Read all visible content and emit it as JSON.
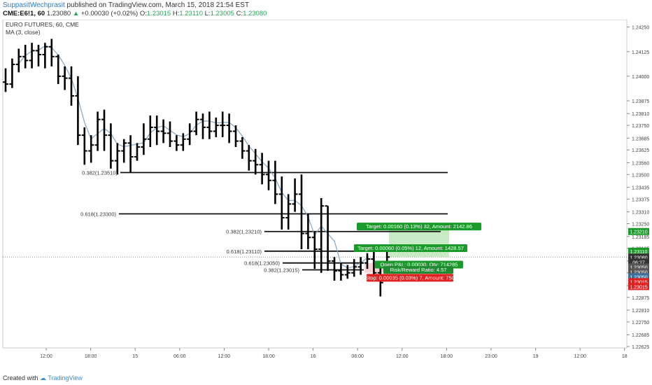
{
  "header": {
    "author": "SuppasitWechprasit",
    "published_text": " published on TradingView.com, March 15, 2018 21:54 EST"
  },
  "ticker": {
    "symbol": "CME:E6!1, 60",
    "last": "1.23080",
    "arrow": "▲",
    "change": "+0.00030 (+0.02%)",
    "o_label": "O:",
    "o_value": "1.23015",
    "h_label": "H:",
    "h_value": "1.23110",
    "l_label": "L:",
    "l_value": "1.23005",
    "c_label": "C:",
    "c_value": "1.23080"
  },
  "footer": {
    "created_with": "Created with",
    "brand": "TradingView"
  },
  "chart_data": {
    "type": "ohlc",
    "title": "EURO FUTURES, 60, CME",
    "indicator": "MA (3, close)",
    "colors": {
      "bars": "#000000",
      "ma": "#7fa6c4",
      "target_box": "#b6e3b0",
      "stop_box": "#f7c8c8",
      "green_label": "#1a9a2a",
      "red_label": "#e02020",
      "blue_label": "#3b6e9a",
      "dark_label": "#333333"
    },
    "ylim": [
      1.22618,
      1.24288
    ],
    "y_ticks": [
      "1.24250",
      "1.24125",
      "1.24000",
      "1.23875",
      "1.23810",
      "1.23750",
      "1.23685",
      "1.23625",
      "1.23560",
      "1.23500",
      "1.23435",
      "1.23375",
      "1.23310",
      "1.23250",
      "1.23185",
      "1.23125",
      "1.23060",
      "1.23000",
      "1.22935",
      "1.22875",
      "1.22810",
      "1.22750",
      "1.22685",
      "1.22625"
    ],
    "x_ticks": [
      "12:00",
      "18:00",
      "15",
      "06:00",
      "12:00",
      "18:00",
      "16",
      "06:00",
      "12:00",
      "18:00",
      "23:00",
      "19",
      "12:00",
      "18"
    ],
    "fib_levels": [
      {
        "label": "0.382(1.23510)",
        "price": 1.2351
      },
      {
        "label": "0.618(1.23300)",
        "price": 1.233
      },
      {
        "label": "0.382(1.23210)",
        "price": 1.2321
      },
      {
        "label": "0.618(1.23110)",
        "price": 1.2311
      },
      {
        "label": "0.618(1.23050)",
        "price": 1.2305
      },
      {
        "label": "0.382(1.23015)",
        "price": 1.23015
      }
    ],
    "labels": {
      "target1": "Target: 0.00160 (0.13%) 32, Amount: 2142.86",
      "target2": "Target: 0.00060 (0.05%) 12, Amount: 1428.57",
      "open_pl": "Open P&L: 0.00030, Qty: 714285",
      "risk_reward": "Risk/Reward Ratio: 4.57",
      "stop": "Stop: 0.00035 (0.03%) 7, Amount: 750"
    },
    "price_tags": [
      {
        "text": "1.23210",
        "price": 1.2321,
        "color": "#1a9a2a"
      },
      {
        "text": "1.23110",
        "price": 1.2311,
        "color": "#1a9a2a"
      },
      {
        "text": "1.23080",
        "price": 1.2308,
        "color": "#333333"
      },
      {
        "text": "06:27",
        "price": 1.23055,
        "color": "#333333"
      },
      {
        "text": "1.23050",
        "price": 1.2303,
        "color": "#555555"
      },
      {
        "text": "1.23050",
        "price": 1.23005,
        "color": "#555555"
      },
      {
        "text": "1.23050",
        "price": 1.2298,
        "color": "#3b6e9a"
      },
      {
        "text": "1.23015",
        "price": 1.22955,
        "color": "#e02020"
      },
      {
        "text": "1.23015",
        "price": 1.2293,
        "color": "#e02020"
      }
    ],
    "bars": [
      [
        1.2397,
        1.2404,
        1.2392,
        1.2396
      ],
      [
        1.2396,
        1.2409,
        1.2394,
        1.2406
      ],
      [
        1.2406,
        1.2414,
        1.2402,
        1.241
      ],
      [
        1.241,
        1.2416,
        1.2404,
        1.2408
      ],
      [
        1.2408,
        1.2417,
        1.2404,
        1.2413
      ],
      [
        1.2413,
        1.2416,
        1.2405,
        1.2411
      ],
      [
        1.2411,
        1.2417,
        1.2404,
        1.2415
      ],
      [
        1.2415,
        1.2419,
        1.2405,
        1.241
      ],
      [
        1.241,
        1.2411,
        1.2396,
        1.24
      ],
      [
        1.24,
        1.2405,
        1.2393,
        1.2399
      ],
      [
        1.2399,
        1.2405,
        1.2385,
        1.239
      ],
      [
        1.239,
        1.24,
        1.2365,
        1.237
      ],
      [
        1.237,
        1.2374,
        1.2355,
        1.2362
      ],
      [
        1.2362,
        1.237,
        1.2356,
        1.2365
      ],
      [
        1.2365,
        1.2382,
        1.2362,
        1.2378
      ],
      [
        1.2378,
        1.2383,
        1.2362,
        1.237
      ],
      [
        1.237,
        1.2376,
        1.2353,
        1.2357
      ],
      [
        1.2357,
        1.2366,
        1.235,
        1.2362
      ],
      [
        1.2362,
        1.2368,
        1.2356,
        1.2366
      ],
      [
        1.2366,
        1.237,
        1.2351,
        1.2359
      ],
      [
        1.2359,
        1.2366,
        1.2357,
        1.2364
      ],
      [
        1.2364,
        1.2376,
        1.236,
        1.2368
      ],
      [
        1.2368,
        1.238,
        1.2364,
        1.2374
      ],
      [
        1.2374,
        1.238,
        1.2365,
        1.2372
      ],
      [
        1.2372,
        1.2378,
        1.2366,
        1.2371
      ],
      [
        1.2371,
        1.2377,
        1.2364,
        1.2367
      ],
      [
        1.2367,
        1.237,
        1.2362,
        1.2365
      ],
      [
        1.2365,
        1.2371,
        1.2362,
        1.2368
      ],
      [
        1.2368,
        1.2376,
        1.2365,
        1.2372
      ],
      [
        1.2372,
        1.2382,
        1.237,
        1.2378
      ],
      [
        1.2378,
        1.2381,
        1.2368,
        1.2374
      ],
      [
        1.2374,
        1.2382,
        1.2368,
        1.2372
      ],
      [
        1.2372,
        1.2379,
        1.2369,
        1.2375
      ],
      [
        1.2375,
        1.2382,
        1.2369,
        1.2375
      ],
      [
        1.2375,
        1.2381,
        1.2366,
        1.2372
      ],
      [
        1.2372,
        1.2375,
        1.2364,
        1.2367
      ],
      [
        1.2367,
        1.2369,
        1.2358,
        1.2362
      ],
      [
        1.2362,
        1.2365,
        1.2352,
        1.2357
      ],
      [
        1.2357,
        1.2363,
        1.235,
        1.2355
      ],
      [
        1.2355,
        1.2361,
        1.2345,
        1.235
      ],
      [
        1.235,
        1.2357,
        1.2342,
        1.2347
      ],
      [
        1.2347,
        1.2357,
        1.2335,
        1.234
      ],
      [
        1.234,
        1.2349,
        1.2322,
        1.2328
      ],
      [
        1.2328,
        1.234,
        1.2322,
        1.2335
      ],
      [
        1.2335,
        1.2348,
        1.2331,
        1.234
      ],
      [
        1.234,
        1.235,
        1.2312,
        1.232
      ],
      [
        1.232,
        1.233,
        1.2312,
        1.2318
      ],
      [
        1.2318,
        1.2321,
        1.2302,
        1.2312
      ],
      [
        1.2312,
        1.2338,
        1.23,
        1.2334
      ],
      [
        1.2334,
        1.2334,
        1.2301,
        1.2306
      ],
      [
        1.2306,
        1.2308,
        1.2296,
        1.2301
      ],
      [
        1.2301,
        1.2305,
        1.2296,
        1.2299
      ],
      [
        1.2299,
        1.2304,
        1.2297,
        1.23
      ],
      [
        1.23,
        1.2307,
        1.2298,
        1.2303
      ],
      [
        1.2303,
        1.2308,
        1.2299,
        1.2305
      ],
      [
        1.2305,
        1.231,
        1.2302,
        1.2307
      ],
      [
        1.2307,
        1.2311,
        1.2297,
        1.23
      ],
      [
        1.23,
        1.2304,
        1.2288,
        1.2295
      ],
      [
        1.2301,
        1.2311,
        1.23,
        1.2308
      ]
    ]
  }
}
